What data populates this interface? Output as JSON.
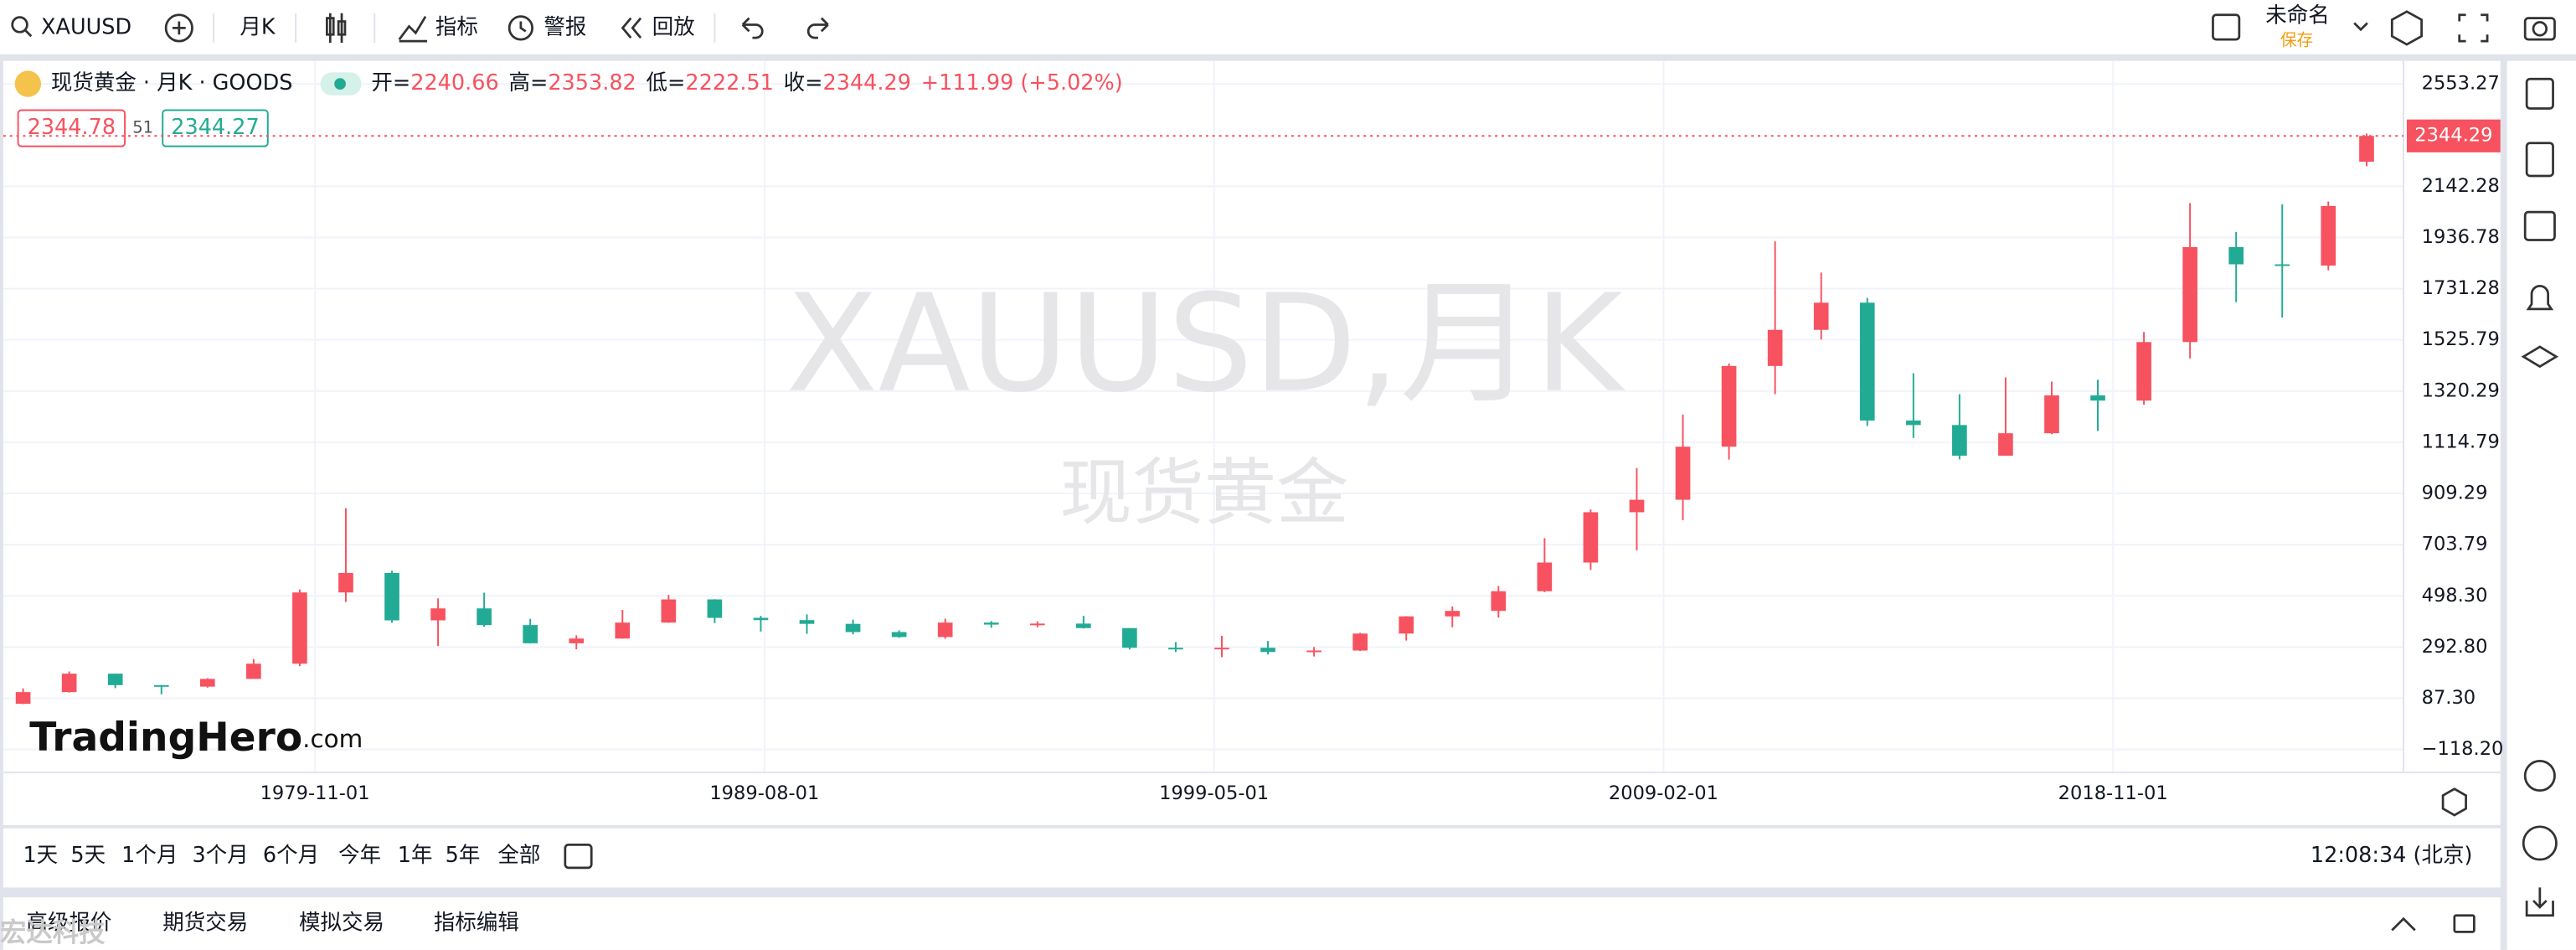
{
  "toolbar": {
    "symbol": "XAUUSD",
    "interval": "月K",
    "indicators": "指标",
    "alerts": "警报",
    "replay": "回放",
    "layout_name": "未命名",
    "save": "保存"
  },
  "legend": {
    "name": "现货黄金 · 月K · GOODS",
    "open_label": "开=",
    "high_label": "高=",
    "low_label": "低=",
    "close_label": "收=",
    "change": "+111.99 (+5.02%)"
  },
  "quote": {
    "bid": 2344.78,
    "spread": "51",
    "ask": 2344.27
  },
  "watermark": {
    "symbol": "XAUUSD,月K",
    "name": "现货黄金",
    "logo": "TradingHero",
    "logo_suffix": ".com",
    "overlay": "宏达科技"
  },
  "chart_data": {
    "type": "candlestick",
    "up_color": "#f7525f",
    "down_color": "#22ab94",
    "grid": true,
    "x": [
      1973.5,
      1974.5,
      1975.5,
      1976.5,
      1977.5,
      1978.5,
      1979.5,
      1980.5,
      1981.5,
      1982.5,
      1983.5,
      1984.5,
      1985.5,
      1986.5,
      1987.5,
      1988.5,
      1989.5,
      1990.5,
      1991.5,
      1992.5,
      1993.5,
      1994.5,
      1995.5,
      1996.5,
      1997.5,
      1998.5,
      1999.5,
      2000.5,
      2001.5,
      2002.5,
      2003.5,
      2004.5,
      2005.5,
      2006.5,
      2007.5,
      2008.5,
      2009.5,
      2010.5,
      2011.5,
      2012.5,
      2013.5,
      2014.5,
      2015.5,
      2016.5,
      2017.5,
      2018.5,
      2019.5,
      2020.5,
      2021.5,
      2022.5,
      2023.5,
      2024.33
    ],
    "open": [
      65,
      112,
      186,
      140,
      134,
      165,
      226,
      512,
      590,
      400,
      448,
      381,
      308,
      327,
      391,
      484,
      410,
      401,
      386,
      353,
      333,
      391,
      383,
      387,
      369,
      290,
      288,
      290,
      273,
      279,
      347,
      416,
      438,
      517,
      632,
      834,
      884,
      1097,
      1421,
      1566,
      1675,
      1202,
      1184,
      1061,
      1151,
      1303,
      1282,
      1517,
      1898,
      1829,
      1824,
      2240.66
    ],
    "high": [
      127,
      195,
      186,
      141,
      168,
      245,
      524,
      850,
      599,
      488,
      511,
      406,
      340,
      442,
      502,
      485,
      418,
      424,
      403,
      360,
      407,
      397,
      396,
      418,
      369,
      313,
      338,
      317,
      293,
      350,
      417,
      456,
      538,
      730,
      845,
      1011,
      1226,
      1431,
      1921,
      1796,
      1694,
      1392,
      1308,
      1375,
      1358,
      1366,
      1557,
      2075,
      1959,
      2070,
      2081,
      2353.82
    ],
    "low": [
      64,
      110,
      128,
      103,
      130,
      165,
      216,
      474,
      391,
      297,
      374,
      307,
      284,
      326,
      390,
      389,
      355,
      346,
      344,
      330,
      326,
      370,
      372,
      367,
      283,
      273,
      252,
      263,
      255,
      277,
      319,
      372,
      411,
      513,
      602,
      681,
      802,
      1045,
      1308,
      1527,
      1180,
      1132,
      1046,
      1061,
      1147,
      1160,
      1266,
      1451,
      1677,
      1615,
      1805,
      2222.51
    ],
    "close": [
      112,
      186,
      140,
      134,
      165,
      226,
      512,
      590,
      400,
      448,
      381,
      308,
      327,
      391,
      484,
      410,
      401,
      386,
      353,
      333,
      391,
      383,
      387,
      369,
      290,
      288,
      290,
      273,
      279,
      347,
      416,
      438,
      517,
      632,
      834,
      884,
      1097,
      1421,
      1566,
      1675,
      1202,
      1184,
      1061,
      1151,
      1303,
      1282,
      1517,
      1898,
      1829,
      1824,
      2063,
      2344.29
    ],
    "xlim": [
      1973.07,
      2025.13
    ],
    "xticks": [
      {
        "value": 1979.83,
        "label": "1979-11-01"
      },
      {
        "value": 1989.58,
        "label": "1989-08-01"
      },
      {
        "value": 1999.33,
        "label": "1999-05-01"
      },
      {
        "value": 2009.08,
        "label": "2009-02-01"
      },
      {
        "value": 2018.83,
        "label": "2018-11-01"
      }
    ],
    "ylim": [
      -210.5,
      2625.8
    ],
    "yticks": [
      2553.27,
      2142.28,
      1936.78,
      1731.28,
      1525.79,
      1320.29,
      1114.79,
      909.29,
      703.79,
      {
        "value": 498.3,
        "label": "498.30"
      },
      {
        "value": 292.8,
        "label": "292.80"
      },
      {
        "value": 87.3,
        "label": "87.30"
      },
      {
        "value": -118.2,
        "label": "−118.20"
      }
    ]
  },
  "periods": [
    "1天",
    "5天",
    "1个月",
    "3个月",
    "6个月",
    "今年",
    "1年",
    "5年",
    "全部"
  ],
  "clock": "12:08:34 (北京)",
  "tabs": [
    "高级报价",
    "期货交易",
    "模拟交易",
    "指标编辑"
  ]
}
